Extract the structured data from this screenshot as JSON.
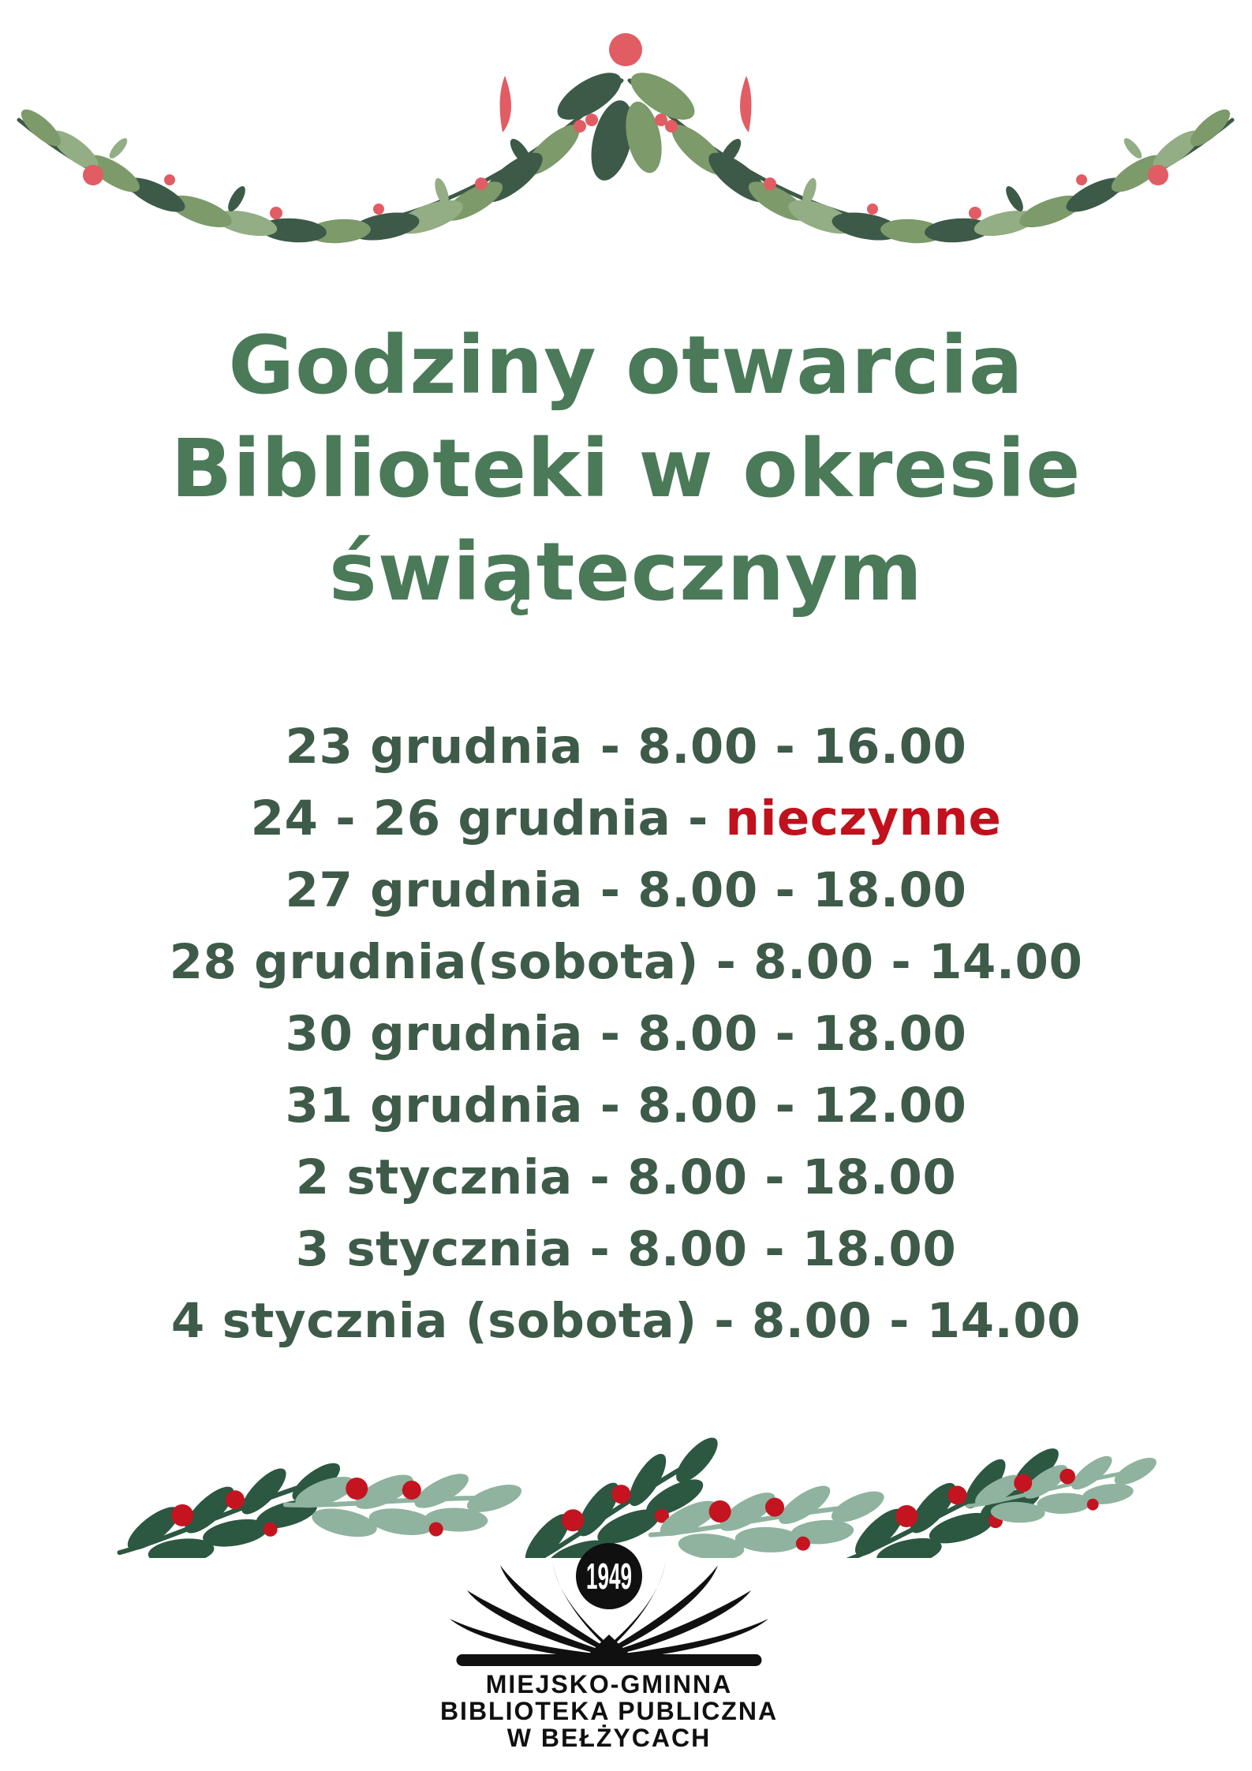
{
  "title": {
    "lines": [
      "Godziny otwarcia",
      "Biblioteki w okresie",
      "świątecznym"
    ]
  },
  "schedule": {
    "rows": [
      {
        "text": "23 grudnia - 8.00 - 16.00"
      },
      {
        "text": "24 - 26 grudnia - ",
        "red_text": "nieczynne"
      },
      {
        "text": "27 grudnia - 8.00 - 18.00"
      },
      {
        "text": "28 grudnia(sobota) - 8.00 - 14.00"
      },
      {
        "text": "30 grudnia - 8.00 - 18.00"
      },
      {
        "text": "31 grudnia - 8.00 - 12.00"
      },
      {
        "text": "2 stycznia - 8.00 - 18.00"
      },
      {
        "text": "3 stycznia - 8.00 - 18.00"
      },
      {
        "text": "4 stycznia (sobota) - 8.00 - 14.00"
      }
    ]
  },
  "logo": {
    "year": "1949",
    "name_lines": [
      "MIEJSKO-GMINNA",
      "BIBLIOTEKA PUBLICZNA",
      "W BEŁŻYCACH"
    ]
  },
  "icons": {
    "top_garland": "leaf-garland-with-berries",
    "bottom_garland": "mistletoe-sprig-divider",
    "logo_mark": "open-book-with-year-badge"
  },
  "colors": {
    "title_green": "#4a7a58",
    "text_green": "#3e5a49",
    "closed_red": "#c0111d",
    "berry_red": "#c41420",
    "berry_coral": "#e25c63",
    "leaf_dark": "#3c5a47",
    "leaf_mid": "#7d9a6a",
    "leaf_sage": "#93ad85",
    "leaf_bottom_dark": "#2c5741",
    "leaf_bottom_sage": "#8fb39e",
    "logo_black": "#101010",
    "paper": "#ffffff"
  }
}
